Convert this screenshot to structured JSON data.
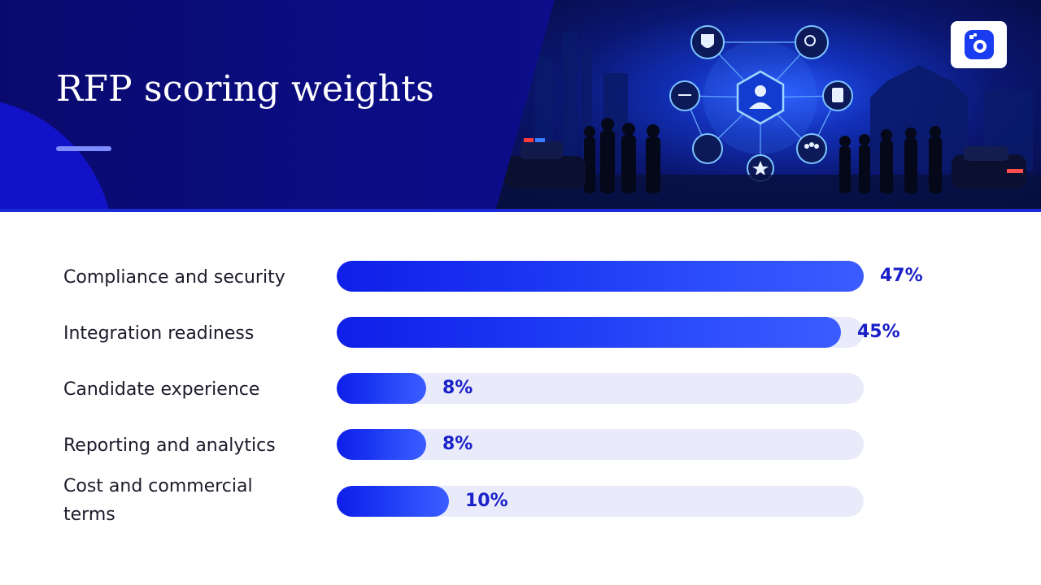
{
  "header": {
    "title": "RFP scoring weights"
  },
  "colors": {
    "header_bg": "#0b0d85",
    "bar": "#1a34f2",
    "track": "#e9ebfb",
    "value_text": "#1b21c8"
  },
  "icons": [
    "shield-icon",
    "search-icon",
    "scales-icon",
    "person-icon",
    "document-icon",
    "fingerprint-icon",
    "people-icon",
    "star-icon",
    "logo-icon"
  ],
  "chart_data": {
    "type": "bar",
    "orientation": "horizontal",
    "categories": [
      "Compliance and security",
      "Integration readiness",
      "Candidate experience",
      "Reporting and analytics",
      "Cost and commercial terms"
    ],
    "values": [
      47,
      45,
      8,
      8,
      10
    ],
    "value_labels": [
      "47%",
      "45%",
      "8%",
      "8%",
      "10%"
    ],
    "unit": "%",
    "xlim": [
      0,
      47
    ],
    "grid": false,
    "legend": "none"
  }
}
